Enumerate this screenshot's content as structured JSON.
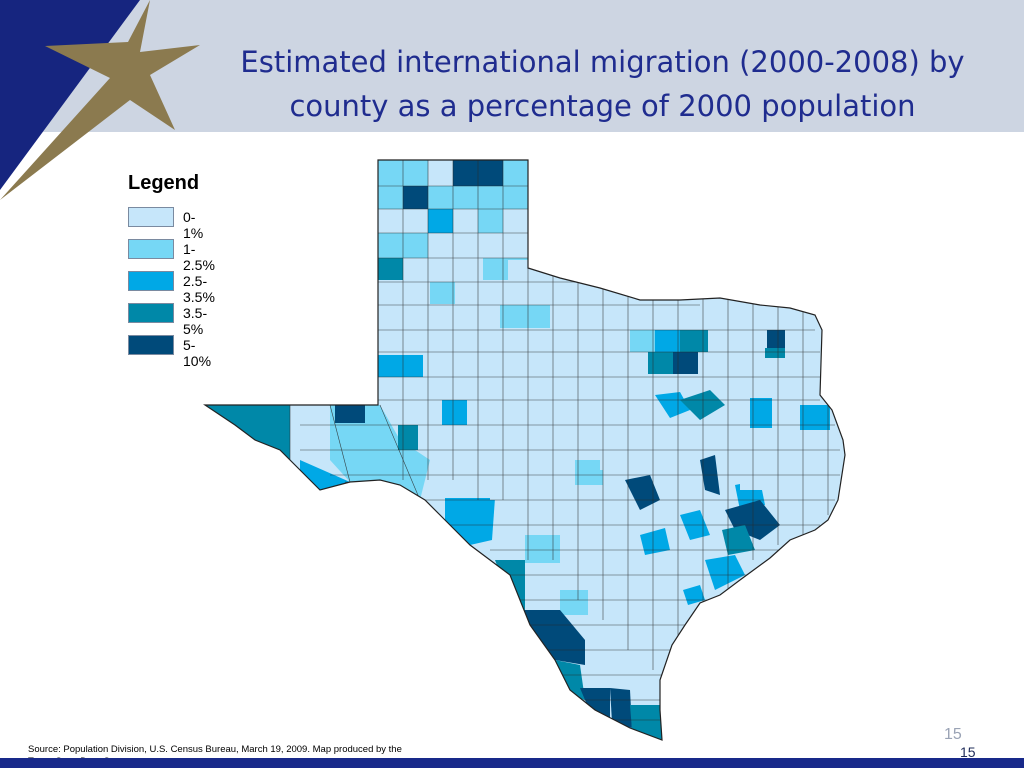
{
  "slide": {
    "title_line1": "Estimated international migration (2000-2008) by",
    "title_line2": "county as a percentage of 2000 population",
    "page_number": "15",
    "page_number_footer": "15",
    "source": "Source: Population Division, U.S. Census Bureau, March 19, 2009. Map produced by the Texas State Data Center."
  },
  "legend": {
    "title": "Legend",
    "items": [
      {
        "label": "0-1%",
        "color": "#c6e6fa"
      },
      {
        "label": "1-2.5%",
        "color": "#76d7f5"
      },
      {
        "label": "2.5-3.5%",
        "color": "#00a8e6"
      },
      {
        "label": "3.5-5%",
        "color": "#0088a8"
      },
      {
        "label": "5-10%",
        "color": "#004a7a"
      }
    ]
  },
  "colors": {
    "header_band": "#cdd5e2",
    "title_text": "#1f2c8f",
    "corner_navy": "#16257f",
    "star_gold": "#8b7a4f",
    "footer_bar": "#18298a"
  }
}
